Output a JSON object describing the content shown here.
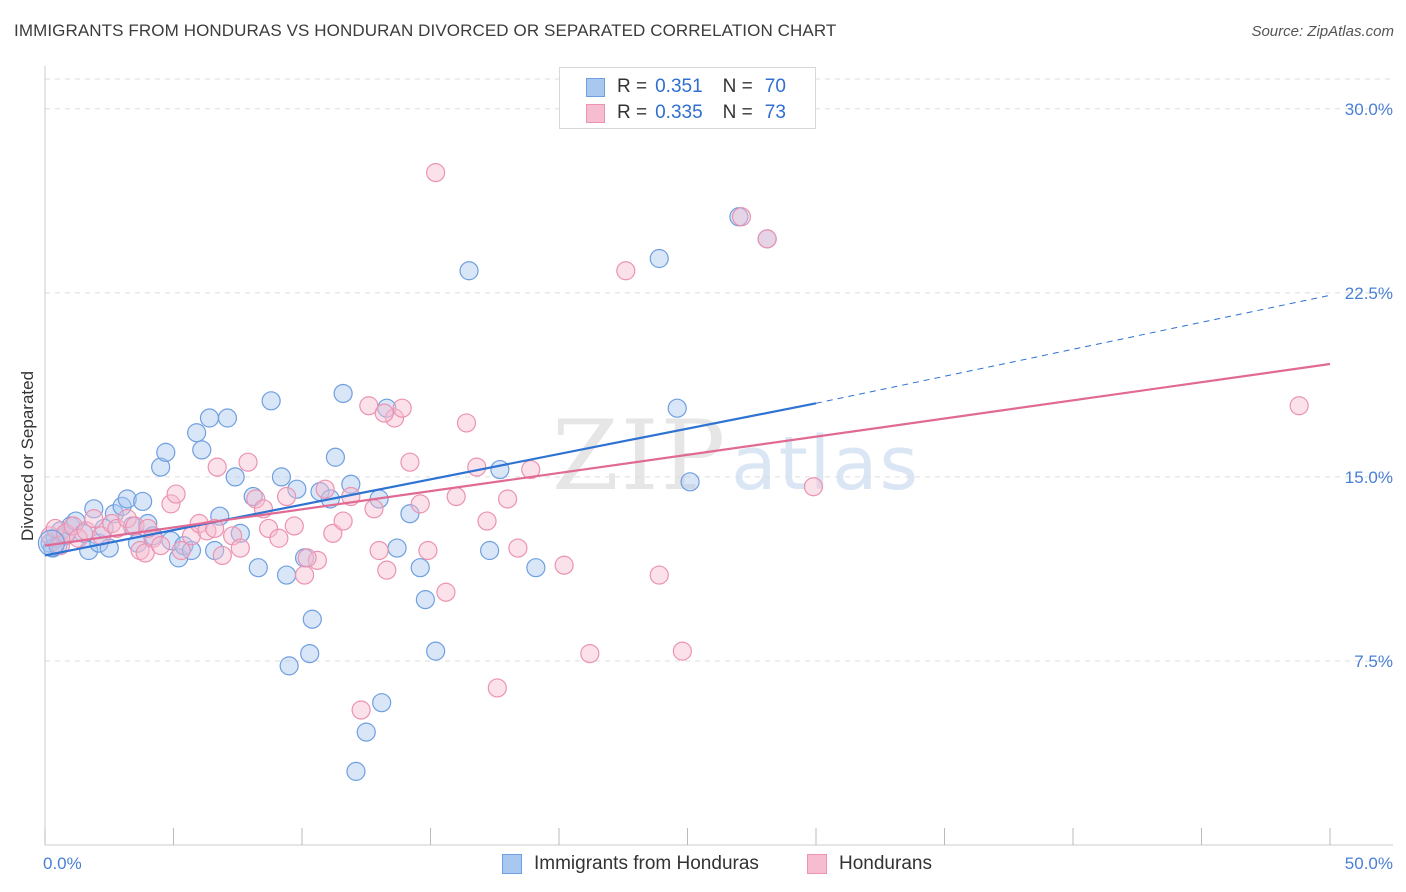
{
  "title": "IMMIGRANTS FROM HONDURAS VS HONDURAN DIVORCED OR SEPARATED CORRELATION CHART",
  "source": "Source: ZipAtlas.com",
  "watermark": {
    "zip": "ZIP",
    "atlas": "atlas"
  },
  "legend": {
    "rows": [
      {
        "r_label": "R =",
        "r_value": "0.351",
        "n_label": "N =",
        "n_value": "70"
      },
      {
        "r_label": "R =",
        "r_value": "0.335",
        "n_label": "N =",
        "n_value": "73"
      }
    ]
  },
  "colors": {
    "blue_fill": "#a9c8f0",
    "blue_stroke": "#6f9fe0",
    "blue_line": "#2e72d2",
    "pink_fill": "#f6bdd0",
    "pink_stroke": "#ec93b1",
    "pink_line": "#e06a93",
    "grid": "#dddddd",
    "tick_label": "#4a7fd4"
  },
  "chart_data": {
    "type": "scatter",
    "title": "IMMIGRANTS FROM HONDURAS VS HONDURAN DIVORCED OR SEPARATED CORRELATION CHART",
    "xlabel": "",
    "ylabel": "Divorced or Separated",
    "xlim": [
      0,
      50
    ],
    "ylim": [
      0,
      31.5
    ],
    "x_tick_labels": [
      "0.0%",
      "50.0%"
    ],
    "y_ticks": [
      7.5,
      15.0,
      22.5,
      30.0
    ],
    "y_tick_labels": [
      "7.5%",
      "15.0%",
      "22.5%",
      "30.0%"
    ],
    "grid": "horizontal dashed",
    "legend_position": "top-center",
    "series": [
      {
        "name": "Immigrants from Honduras",
        "color": "#a9c8f0",
        "points": [
          [
            0.2,
            12.3
          ],
          [
            0.3,
            12.1
          ],
          [
            0.4,
            12.5
          ],
          [
            0.5,
            12.2
          ],
          [
            0.6,
            12.8
          ],
          [
            0.8,
            12.6
          ],
          [
            1.0,
            13.0
          ],
          [
            1.2,
            13.2
          ],
          [
            1.5,
            12.7
          ],
          [
            1.7,
            12.0
          ],
          [
            1.9,
            13.7
          ],
          [
            2.1,
            12.3
          ],
          [
            2.3,
            12.9
          ],
          [
            2.5,
            12.1
          ],
          [
            2.7,
            13.5
          ],
          [
            3.0,
            13.8
          ],
          [
            3.2,
            14.1
          ],
          [
            3.4,
            13.0
          ],
          [
            3.6,
            12.3
          ],
          [
            3.8,
            14.0
          ],
          [
            4.0,
            13.1
          ],
          [
            4.2,
            12.6
          ],
          [
            4.5,
            15.4
          ],
          [
            4.7,
            16.0
          ],
          [
            4.9,
            12.4
          ],
          [
            5.2,
            11.7
          ],
          [
            5.4,
            12.2
          ],
          [
            5.7,
            12.0
          ],
          [
            5.9,
            16.8
          ],
          [
            6.1,
            16.1
          ],
          [
            6.4,
            17.4
          ],
          [
            6.6,
            12.0
          ],
          [
            6.8,
            13.4
          ],
          [
            7.1,
            17.4
          ],
          [
            7.4,
            15.0
          ],
          [
            7.6,
            12.7
          ],
          [
            8.1,
            14.2
          ],
          [
            8.3,
            11.3
          ],
          [
            8.8,
            18.1
          ],
          [
            9.2,
            15.0
          ],
          [
            9.4,
            11.0
          ],
          [
            9.8,
            14.5
          ],
          [
            10.1,
            11.7
          ],
          [
            10.4,
            9.2
          ],
          [
            10.7,
            14.4
          ],
          [
            11.1,
            14.1
          ],
          [
            11.3,
            15.8
          ],
          [
            11.6,
            18.4
          ],
          [
            11.9,
            14.7
          ],
          [
            12.1,
            3.0
          ],
          [
            12.5,
            4.6
          ],
          [
            13.1,
            5.8
          ],
          [
            13.3,
            17.8
          ],
          [
            13.7,
            12.1
          ],
          [
            14.2,
            13.5
          ],
          [
            14.6,
            11.3
          ],
          [
            14.8,
            10.0
          ],
          [
            15.2,
            7.9
          ],
          [
            16.5,
            23.4
          ],
          [
            17.3,
            12.0
          ],
          [
            17.7,
            15.3
          ],
          [
            19.1,
            11.3
          ],
          [
            23.9,
            23.9
          ],
          [
            24.6,
            17.8
          ],
          [
            25.1,
            14.8
          ],
          [
            27.0,
            25.6
          ],
          [
            28.1,
            24.7
          ],
          [
            9.5,
            7.3
          ],
          [
            10.3,
            7.8
          ],
          [
            13.0,
            14.1
          ]
        ],
        "trend_solid": [
          [
            0,
            11.8
          ],
          [
            30,
            18.0
          ]
        ],
        "trend_dashed": [
          [
            30,
            18.0
          ],
          [
            50,
            22.4
          ]
        ]
      },
      {
        "name": "Hondurans",
        "color": "#f6bdd0",
        "points": [
          [
            0.2,
            12.6
          ],
          [
            0.4,
            12.9
          ],
          [
            0.6,
            12.2
          ],
          [
            0.8,
            12.7
          ],
          [
            1.1,
            13.0
          ],
          [
            1.3,
            12.5
          ],
          [
            1.6,
            12.8
          ],
          [
            1.9,
            13.3
          ],
          [
            2.2,
            12.6
          ],
          [
            2.6,
            13.1
          ],
          [
            2.8,
            12.9
          ],
          [
            3.2,
            13.3
          ],
          [
            3.5,
            13.0
          ],
          [
            3.7,
            12.0
          ],
          [
            3.9,
            11.9
          ],
          [
            4.2,
            12.5
          ],
          [
            4.5,
            12.2
          ],
          [
            4.9,
            13.9
          ],
          [
            5.1,
            14.3
          ],
          [
            5.3,
            12.0
          ],
          [
            5.7,
            12.6
          ],
          [
            6.0,
            13.1
          ],
          [
            6.3,
            12.8
          ],
          [
            6.7,
            15.4
          ],
          [
            6.9,
            11.8
          ],
          [
            7.3,
            12.6
          ],
          [
            7.6,
            12.1
          ],
          [
            7.9,
            15.6
          ],
          [
            8.2,
            14.1
          ],
          [
            8.7,
            12.9
          ],
          [
            9.1,
            12.5
          ],
          [
            9.4,
            14.2
          ],
          [
            9.7,
            13.0
          ],
          [
            10.1,
            11.0
          ],
          [
            10.6,
            11.6
          ],
          [
            10.9,
            14.5
          ],
          [
            11.2,
            12.7
          ],
          [
            11.6,
            13.2
          ],
          [
            11.9,
            14.2
          ],
          [
            12.3,
            5.5
          ],
          [
            12.6,
            17.9
          ],
          [
            13.0,
            12.0
          ],
          [
            13.3,
            11.2
          ],
          [
            13.6,
            17.4
          ],
          [
            13.9,
            17.8
          ],
          [
            14.2,
            15.6
          ],
          [
            14.6,
            13.9
          ],
          [
            14.9,
            12.0
          ],
          [
            15.2,
            27.4
          ],
          [
            15.6,
            10.3
          ],
          [
            16.0,
            14.2
          ],
          [
            16.4,
            17.2
          ],
          [
            16.8,
            15.4
          ],
          [
            17.2,
            13.2
          ],
          [
            17.6,
            6.4
          ],
          [
            18.0,
            14.1
          ],
          [
            18.4,
            12.1
          ],
          [
            18.9,
            15.3
          ],
          [
            20.2,
            11.4
          ],
          [
            21.2,
            7.8
          ],
          [
            22.6,
            23.4
          ],
          [
            23.9,
            11.0
          ],
          [
            24.8,
            7.9
          ],
          [
            27.1,
            25.6
          ],
          [
            28.1,
            24.7
          ],
          [
            29.9,
            14.6
          ],
          [
            48.8,
            17.9
          ],
          [
            12.8,
            13.7
          ],
          [
            13.2,
            17.6
          ],
          [
            10.2,
            11.7
          ],
          [
            8.5,
            13.7
          ],
          [
            4.0,
            12.9
          ],
          [
            6.6,
            12.9
          ]
        ],
        "trend_solid": [
          [
            0,
            12.2
          ],
          [
            50,
            19.6
          ]
        ]
      }
    ]
  }
}
